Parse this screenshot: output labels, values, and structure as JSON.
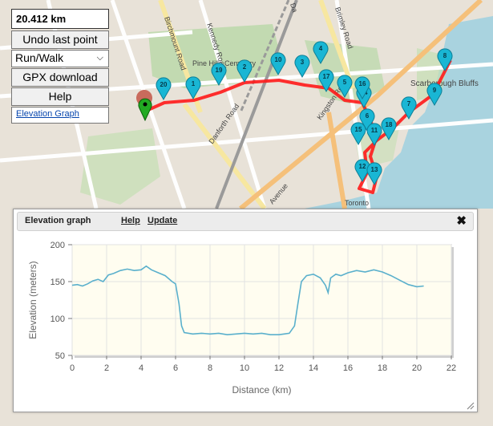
{
  "controls": {
    "distance": "20.412 km",
    "undo_label": "Undo last point",
    "mode_value": "Run/Walk",
    "gpx_label": "GPX download",
    "help_label": "Help",
    "elevation_link": "Elevation Graph"
  },
  "map": {
    "labels": [
      "Birchmount Road",
      "Kennedy Road",
      "Pine Hills Cemetery",
      "Danforth Road",
      "Kingston Road",
      "Brimley Road",
      "Scarborough Bluffs",
      "Avenue",
      "Toronto",
      "Da"
    ],
    "markers": [
      "1",
      "2",
      "3",
      "4",
      "5",
      "6",
      "7",
      "8",
      "9",
      "10",
      "11",
      "12",
      "13",
      "14",
      "15",
      "16",
      "17",
      "18",
      "19",
      "20"
    ],
    "route_color": "#ff0000",
    "marker_color": "#19b6d4"
  },
  "panel": {
    "title": "Elevation graph",
    "help_link": "Help",
    "update_link": "Update",
    "close_icon": "close-icon"
  },
  "chart_data": {
    "type": "line",
    "xlabel": "Distance (km)",
    "ylabel": "Elevation (meters)",
    "xlim": [
      0,
      22
    ],
    "ylim": [
      50,
      200
    ],
    "xticks": [
      0,
      2,
      4,
      6,
      8,
      10,
      12,
      14,
      16,
      18,
      20,
      22
    ],
    "yticks": [
      50,
      100,
      150,
      200
    ],
    "line_color": "#5ab0cc",
    "grid": true,
    "x": [
      0,
      0.3,
      0.6,
      0.9,
      1.2,
      1.5,
      1.8,
      2.1,
      2.4,
      2.8,
      3.2,
      3.6,
      4.0,
      4.3,
      4.6,
      5.0,
      5.4,
      5.8,
      6.0,
      6.2,
      6.35,
      6.5,
      7.0,
      7.5,
      8.0,
      8.5,
      9.0,
      9.5,
      10.0,
      10.5,
      11.0,
      11.5,
      12.0,
      12.3,
      12.6,
      12.9,
      13.1,
      13.3,
      13.6,
      14.0,
      14.4,
      14.7,
      14.85,
      15.0,
      15.3,
      15.6,
      16.0,
      16.5,
      17.0,
      17.5,
      18.0,
      18.5,
      19.0,
      19.5,
      20.0,
      20.4
    ],
    "y": [
      145,
      146,
      144,
      147,
      151,
      153,
      150,
      159,
      161,
      165,
      167,
      165,
      166,
      171,
      166,
      162,
      158,
      150,
      147,
      120,
      90,
      81,
      79,
      80,
      79,
      80,
      78,
      79,
      80,
      79,
      80,
      78,
      78,
      79,
      80,
      90,
      120,
      150,
      158,
      160,
      155,
      145,
      135,
      155,
      160,
      158,
      162,
      165,
      163,
      166,
      163,
      158,
      152,
      146,
      143,
      144
    ]
  }
}
